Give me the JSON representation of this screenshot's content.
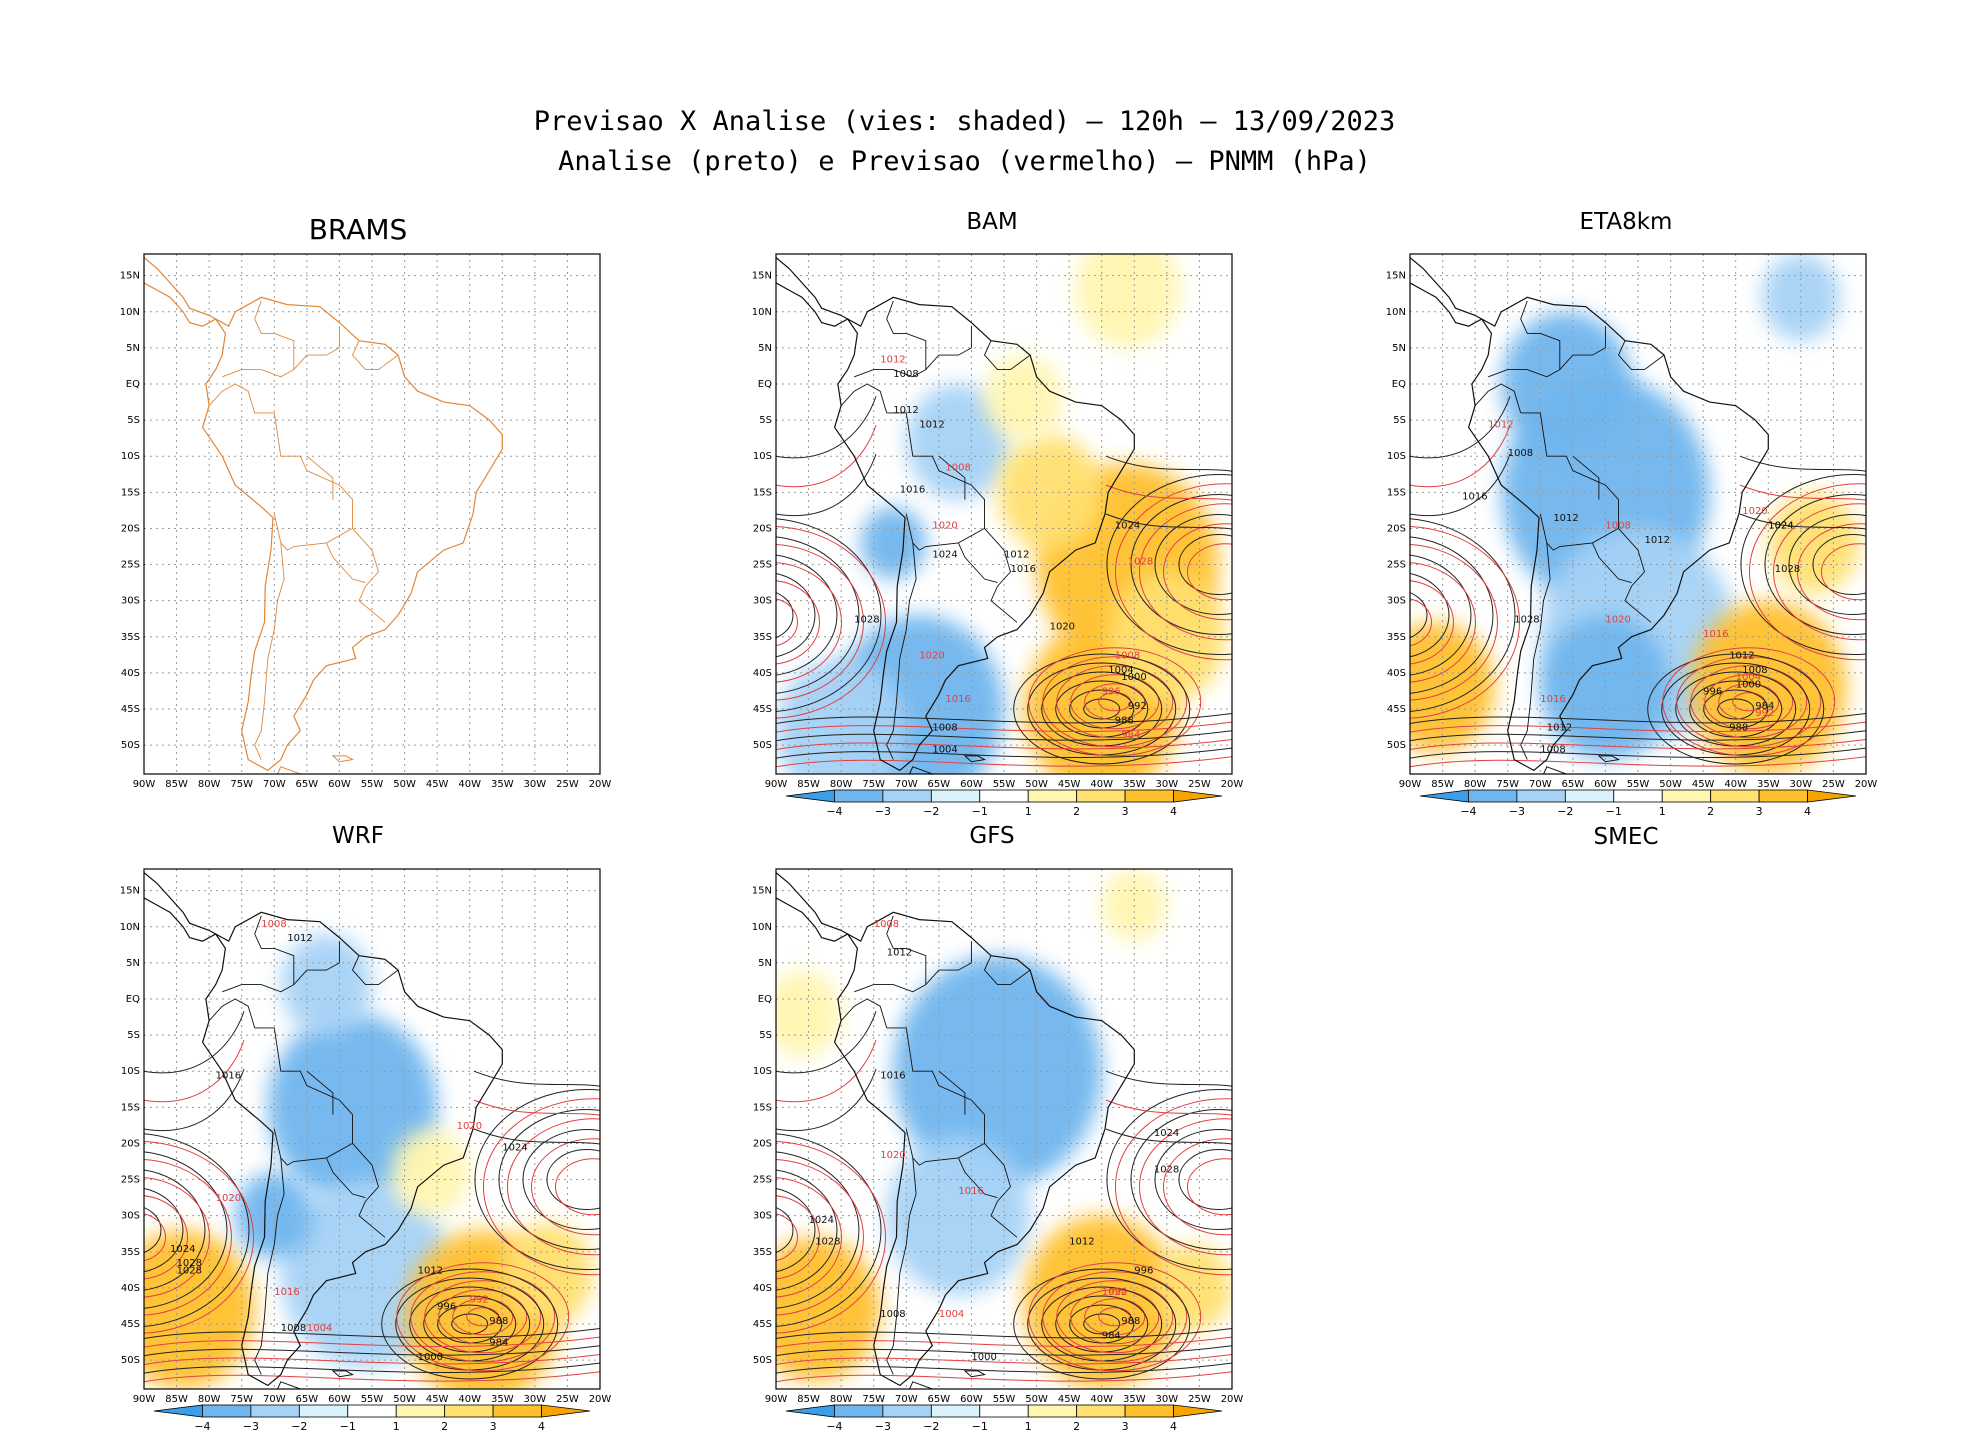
{
  "title": {
    "line1": "Previsao X Analise (vies: shaded) – 120h – 13/09/2023",
    "line2": "Analise (preto) e Previsao (vermelho) – PNMM (hPa)"
  },
  "axes": {
    "lon_ticks": [
      "90W",
      "85W",
      "80W",
      "75W",
      "70W",
      "65W",
      "60W",
      "55W",
      "50W",
      "45W",
      "40W",
      "35W",
      "30W",
      "25W",
      "20W"
    ],
    "lat_ticks": [
      "15N",
      "10N",
      "5N",
      "EQ",
      "5S",
      "10S",
      "15S",
      "20S",
      "25S",
      "30S",
      "35S",
      "40S",
      "45S",
      "50S"
    ]
  },
  "colorbar": {
    "labels": [
      "−4",
      "−3",
      "−2",
      "−1",
      "1",
      "2",
      "3",
      "4"
    ],
    "colors": [
      "#3c9ee8",
      "#6fb6ee",
      "#a6d2f6",
      "#d9f2fb",
      "#ffffff",
      "#fff6b0",
      "#ffe070",
      "#ffc02e",
      "#f5a400"
    ]
  },
  "panels": [
    {
      "id": "brams",
      "title": "BRAMS",
      "has_colorbar": false,
      "contour_labels": []
    },
    {
      "id": "bam",
      "title": "BAM",
      "has_colorbar": true,
      "contour_labels": [
        "1012",
        "1012",
        "1008",
        "1008",
        "1012",
        "1016",
        "1020",
        "1024",
        "1028",
        "1020",
        "1016",
        "1012",
        "1008",
        "1004",
        "1000",
        "996",
        "992",
        "988",
        "984",
        "1004",
        "1008",
        "1016",
        "1020",
        "1024",
        "1028"
      ]
    },
    {
      "id": "eta8km",
      "title": "ETA8km",
      "has_colorbar": true,
      "contour_labels": [
        "1012",
        "1012",
        "1008",
        "1008",
        "1012",
        "1016",
        "1020",
        "1024",
        "1028",
        "1016",
        "1012",
        "1008",
        "1004",
        "1000",
        "996",
        "992",
        "988",
        "984",
        "1016",
        "1012",
        "1008",
        "1020",
        "1024",
        "1028"
      ]
    },
    {
      "id": "wrf",
      "title": "WRF",
      "has_colorbar": true,
      "contour_labels": [
        "1008",
        "1012",
        "1016",
        "1020",
        "1024",
        "1028",
        "1016",
        "1012",
        "1008",
        "1004",
        "1000",
        "996",
        "992",
        "988",
        "984",
        "1020",
        "1024",
        "1028"
      ]
    },
    {
      "id": "gfs",
      "title": "GFS",
      "has_colorbar": true,
      "contour_labels": [
        "1008",
        "1012",
        "1016",
        "1020",
        "1024",
        "1028",
        "1016",
        "1012",
        "1008",
        "1004",
        "1000",
        "996",
        "992",
        "988",
        "984",
        "1020",
        "1024",
        "1028"
      ]
    }
  ],
  "smec_label": "SMEC"
}
